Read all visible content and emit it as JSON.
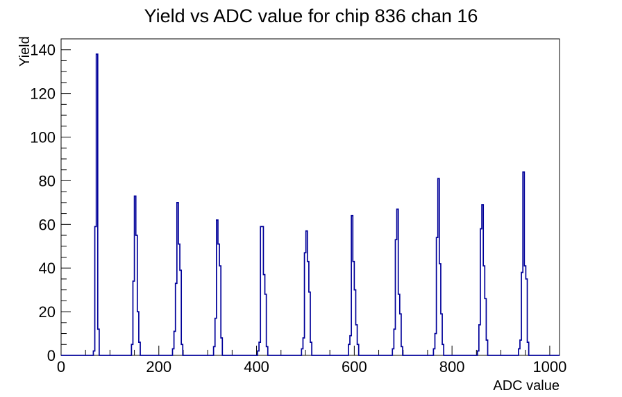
{
  "title": "Yield vs ADC value for chip 836 chan 16",
  "chart_data": {
    "type": "bar",
    "subtype": "histogram-step-outline",
    "title": "Yield vs ADC value for chip 836 chan 16",
    "xlabel": "ADC value",
    "ylabel": "Yield",
    "xlim": [
      0,
      1020
    ],
    "ylim": [
      0,
      145
    ],
    "grid": false,
    "legend": "none",
    "x_major_ticks": [
      0,
      200,
      400,
      600,
      800,
      1000
    ],
    "x_minor_step": 50,
    "y_major_ticks": [
      0,
      20,
      40,
      60,
      80,
      100,
      120,
      140
    ],
    "y_minor_step": 5,
    "line_color": "#000099",
    "bin_width": 3,
    "peaks": [
      {
        "adc": 72,
        "yield": 138
      },
      {
        "adc": 150,
        "yield": 73
      },
      {
        "adc": 237,
        "yield": 70
      },
      {
        "adc": 318,
        "yield": 62
      },
      {
        "adc": 410,
        "yield": 59
      },
      {
        "adc": 501,
        "yield": 57
      },
      {
        "adc": 594,
        "yield": 64
      },
      {
        "adc": 687,
        "yield": 67
      },
      {
        "adc": 771,
        "yield": 81
      },
      {
        "adc": 861,
        "yield": 69
      },
      {
        "adc": 945,
        "yield": 84
      }
    ],
    "bins": [
      [
        66,
        2
      ],
      [
        69,
        59
      ],
      [
        72,
        138
      ],
      [
        75,
        12
      ],
      [
        144,
        5
      ],
      [
        147,
        34
      ],
      [
        150,
        73
      ],
      [
        153,
        55
      ],
      [
        156,
        20
      ],
      [
        159,
        6
      ],
      [
        228,
        3
      ],
      [
        231,
        11
      ],
      [
        234,
        33
      ],
      [
        237,
        70
      ],
      [
        240,
        51
      ],
      [
        243,
        39
      ],
      [
        246,
        5
      ],
      [
        312,
        4
      ],
      [
        315,
        17
      ],
      [
        318,
        62
      ],
      [
        321,
        51
      ],
      [
        324,
        41
      ],
      [
        327,
        8
      ],
      [
        402,
        2
      ],
      [
        405,
        6
      ],
      [
        408,
        59
      ],
      [
        411,
        59
      ],
      [
        414,
        37
      ],
      [
        417,
        28
      ],
      [
        420,
        4
      ],
      [
        492,
        3
      ],
      [
        495,
        8
      ],
      [
        498,
        47
      ],
      [
        501,
        57
      ],
      [
        504,
        43
      ],
      [
        507,
        29
      ],
      [
        510,
        6
      ],
      [
        588,
        5
      ],
      [
        591,
        9
      ],
      [
        594,
        64
      ],
      [
        597,
        43
      ],
      [
        600,
        30
      ],
      [
        603,
        14
      ],
      [
        606,
        5
      ],
      [
        678,
        3
      ],
      [
        681,
        12
      ],
      [
        684,
        53
      ],
      [
        687,
        67
      ],
      [
        690,
        28
      ],
      [
        693,
        19
      ],
      [
        696,
        4
      ],
      [
        762,
        3
      ],
      [
        765,
        10
      ],
      [
        768,
        54
      ],
      [
        771,
        81
      ],
      [
        774,
        42
      ],
      [
        777,
        19
      ],
      [
        780,
        5
      ],
      [
        852,
        2
      ],
      [
        855,
        14
      ],
      [
        858,
        58
      ],
      [
        861,
        69
      ],
      [
        864,
        41
      ],
      [
        867,
        26
      ],
      [
        870,
        7
      ],
      [
        936,
        3
      ],
      [
        939,
        7
      ],
      [
        942,
        38
      ],
      [
        945,
        84
      ],
      [
        948,
        41
      ],
      [
        951,
        35
      ],
      [
        954,
        6
      ]
    ]
  }
}
